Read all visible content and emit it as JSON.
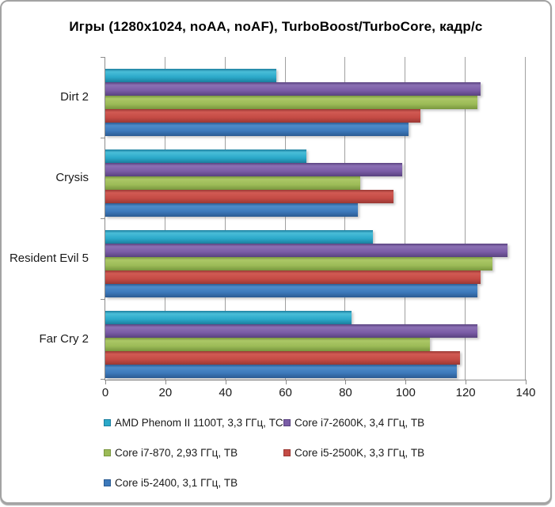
{
  "title": "Игры (1280x1024, noAA, noAF), TurboBoost/TurboCore, кадр/с",
  "chart_data": {
    "type": "bar",
    "orientation": "horizontal",
    "title": "Игры (1280x1024, noAA, noAF), TurboBoost/TurboCore, кадр/с",
    "xlabel": "",
    "ylabel": "",
    "xlim": [
      0,
      140
    ],
    "xticks": [
      0,
      20,
      40,
      60,
      80,
      100,
      120,
      140
    ],
    "grid": "vertical",
    "legend_position": "bottom",
    "categories": [
      "Dirt 2",
      "Crysis",
      "Resident Evil 5",
      "Far Cry 2"
    ],
    "series": [
      {
        "name": "AMD Phenom II 1100T, 3,3 ГГц, TC",
        "color": "#2BA9C9",
        "color_light": "#49BDD8",
        "color_dark": "#1B7E9E",
        "values": [
          57,
          67,
          89,
          82
        ]
      },
      {
        "name": "Core i7-2600K, 3,4 ГГц, TB",
        "color": "#7A5CA6",
        "color_light": "#8B70B3",
        "color_dark": "#59427F",
        "values": [
          125,
          99,
          134,
          124
        ]
      },
      {
        "name": "Core i7-870, 2,93 ГГц, TB",
        "color": "#9CBB57",
        "color_light": "#ABC766",
        "color_dark": "#79973F",
        "values": [
          124,
          85,
          129,
          108
        ]
      },
      {
        "name": "Core i5-2500K, 3,3 ГГц, TB",
        "color": "#C54B45",
        "color_light": "#D15A53",
        "color_dark": "#9A3834",
        "values": [
          105,
          96,
          125,
          118
        ]
      },
      {
        "name": "Core i5-2400, 3,1 ГГц, TB",
        "color": "#3C79BB",
        "color_light": "#4D8BC9",
        "color_dark": "#2B5B92",
        "values": [
          101,
          84,
          124,
          117
        ]
      }
    ]
  },
  "layout_colors": {
    "axis": "#8c8c8c",
    "gridline": "#a0a0a0",
    "frame_border": "#a3a3a3",
    "text": "#1a1a1a"
  }
}
